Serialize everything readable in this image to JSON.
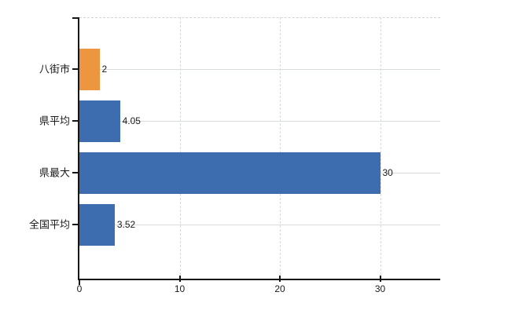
{
  "chart_data": {
    "type": "bar",
    "orientation": "horizontal",
    "title": "",
    "categories": [
      "八街市",
      "県平均",
      "県最大",
      "全国平均"
    ],
    "values": [
      2,
      4.05,
      30,
      3.52
    ],
    "value_labels": [
      "2",
      "4.05",
      "30",
      "3.52"
    ],
    "bar_colors": [
      "#EE9540",
      "#3D6DAE",
      "#3D6DAE",
      "#3D6DAE"
    ],
    "xlabel": "",
    "ylabel": "",
    "xlim": [
      0,
      36
    ],
    "x_ticks": [
      0,
      10,
      20,
      30
    ],
    "x_tick_labels": [
      "0",
      "10",
      "20",
      "30"
    ],
    "grid": true,
    "legend": false
  },
  "colors": {
    "background": "#ffffff",
    "axis": "#161616",
    "tick": "#161616",
    "gridline_horizontal": "#d7ddd7",
    "gridline_vertical": "#d9d9d9",
    "plot_top_border": "#d4d4d4",
    "label_text": "#1a1a1a",
    "accent_orange": "#EE9540",
    "accent_blue": "#3D6DAE"
  }
}
